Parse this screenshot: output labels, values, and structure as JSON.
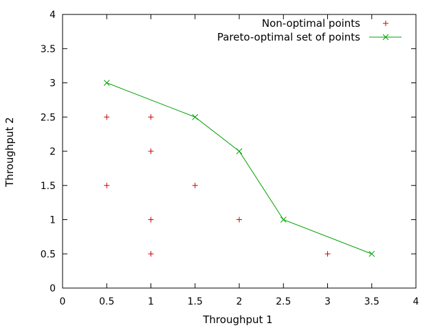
{
  "chart_data": {
    "type": "scatter",
    "xlabel": "Throughput 1",
    "ylabel": "Throughput 2",
    "xlim": [
      0,
      4
    ],
    "ylim": [
      0,
      4
    ],
    "xticks": [
      "0",
      "0.5",
      "1",
      "1.5",
      "2",
      "2.5",
      "3",
      "3.5",
      "4"
    ],
    "yticks": [
      "0",
      "0.5",
      "1",
      "1.5",
      "2",
      "2.5",
      "3",
      "3.5",
      "4"
    ],
    "grid": false,
    "legend_position": "top-right",
    "series": [
      {
        "name": "Non-optimal points",
        "marker": "plus",
        "color": "#cc0000",
        "points": [
          [
            0.5,
            2.5
          ],
          [
            1,
            2.5
          ],
          [
            1,
            2
          ],
          [
            0.5,
            1.5
          ],
          [
            1.5,
            1.5
          ],
          [
            1,
            1
          ],
          [
            2,
            1
          ],
          [
            1,
            0.5
          ],
          [
            3,
            0.5
          ]
        ]
      },
      {
        "name": "Pareto-optimal set of points",
        "marker": "cross",
        "line": true,
        "color": "#00a000",
        "points": [
          [
            0.5,
            3
          ],
          [
            1.5,
            2.5
          ],
          [
            2,
            2
          ],
          [
            2.5,
            1
          ],
          [
            3.5,
            0.5
          ]
        ]
      }
    ]
  }
}
